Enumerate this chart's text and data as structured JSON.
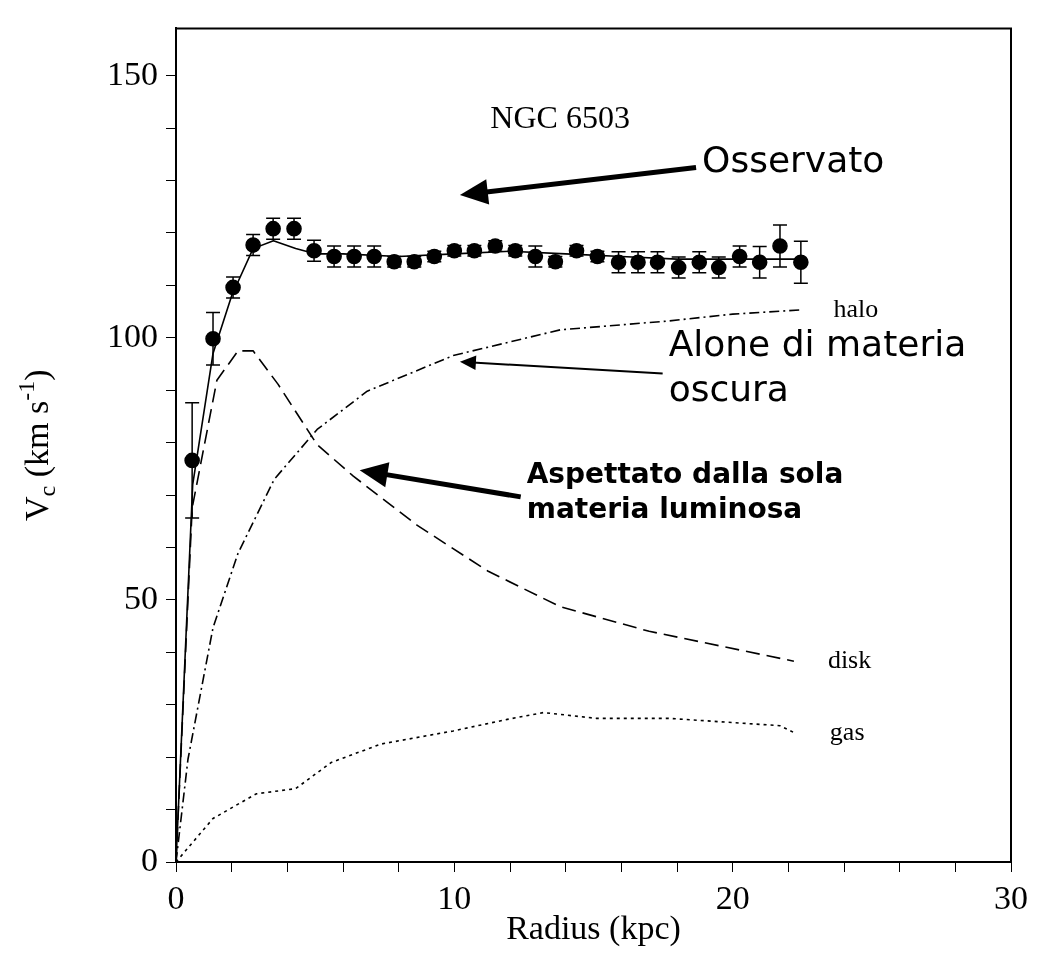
{
  "chart_data": {
    "type": "line",
    "xlabel": "Radius (kpc)",
    "ylabel": "V$_{c}$ (km s$^{-1}$)",
    "xlim": [
      0,
      30
    ],
    "xticks": [
      0,
      {
        "value": 2,
        "label": null
      },
      {
        "value": 4,
        "label": null
      },
      {
        "value": 6,
        "label": null
      },
      {
        "value": 8,
        "label": null
      },
      10,
      {
        "value": 12,
        "label": null
      },
      {
        "value": 14,
        "label": null
      },
      {
        "value": 16,
        "label": null
      },
      {
        "value": 18,
        "label": null
      },
      20,
      {
        "value": 22,
        "label": null
      },
      {
        "value": 24,
        "label": null
      },
      {
        "value": 26,
        "label": null
      },
      {
        "value": 28,
        "label": null
      },
      30
    ],
    "ylim": [
      0,
      159
    ],
    "yticks": [
      0,
      {
        "value": 10,
        "label": null
      },
      {
        "value": 20,
        "label": null
      },
      {
        "value": 30,
        "label": null
      },
      {
        "value": 40,
        "label": null
      },
      50,
      {
        "value": 60,
        "label": null
      },
      {
        "value": 70,
        "label": null
      },
      {
        "value": 80,
        "label": null
      },
      {
        "value": 90,
        "label": null
      },
      100,
      {
        "value": 110,
        "label": null
      },
      {
        "value": 120,
        "label": null
      },
      {
        "value": 130,
        "label": null
      },
      {
        "value": 140,
        "label": null
      },
      150
    ],
    "grid": false,
    "legend": false,
    "series": [
      {
        "type": "scatter",
        "color": "#000000",
        "marker": "circle",
        "x": [
          0.58,
          1.33,
          2.05,
          2.77,
          3.49,
          4.24,
          4.96,
          5.68,
          6.4,
          7.12,
          7.84,
          8.56,
          9.28,
          10.0,
          10.72,
          11.47,
          12.19,
          12.91,
          13.63,
          14.39,
          15.14,
          15.9,
          16.6,
          17.3,
          18.06,
          18.8,
          19.5,
          20.25,
          20.97,
          21.7,
          22.45
        ],
        "values": [
          76.6,
          99.8,
          109.6,
          117.7,
          120.8,
          120.8,
          116.6,
          115.5,
          115.5,
          115.5,
          114.5,
          114.5,
          115.5,
          116.6,
          116.6,
          117.5,
          116.6,
          115.5,
          114.5,
          116.6,
          115.5,
          114.4,
          114.4,
          114.4,
          113.4,
          114.4,
          113.4,
          115.5,
          114.4,
          117.5,
          114.4
        ],
        "errors": [
          11,
          5,
          2,
          2,
          2,
          2,
          2,
          2,
          2,
          2,
          1,
          1,
          1,
          1,
          1,
          1,
          1,
          2,
          1,
          1,
          1,
          2,
          2,
          2,
          2,
          2,
          2,
          2,
          3,
          4,
          4
        ]
      },
      {
        "color": "#000000",
        "marker": "none",
        "line_style": "solid",
        "x": [
          0,
          0.6,
          1.33,
          2.0,
          2.77,
          3.5,
          4.3,
          5.0,
          6.0,
          8.0,
          10.0,
          12.0,
          14.0,
          16.0,
          18.0,
          20.0,
          22.4
        ],
        "values": [
          0,
          72,
          97,
          108,
          117,
          118.5,
          117,
          116,
          116,
          115.5,
          116,
          116.5,
          116,
          115.5,
          115,
          115,
          115
        ]
      },
      {
        "name": "halo",
        "color": "#000000",
        "marker": "none",
        "line_style": "dashdot",
        "x": [
          0,
          0.43,
          1.33,
          2.23,
          3.53,
          5.07,
          6.87,
          9.96,
          13.8,
          17.7,
          20.0,
          22.4
        ],
        "values": [
          0,
          19.6,
          44.7,
          58.9,
          73,
          82.5,
          89.8,
          96.6,
          101.5,
          103.2,
          104.5,
          105.3
        ]
      },
      {
        "name": "disk",
        "color": "#000000",
        "marker": "none",
        "line_style": "dashed",
        "x": [
          0,
          0.58,
          1.47,
          2.23,
          2.77,
          3.67,
          5.07,
          6.37,
          8.67,
          11.2,
          13.8,
          17.0,
          22.2
        ],
        "values": [
          0,
          67.5,
          91.9,
          97.5,
          97.5,
          91.1,
          79.6,
          73.6,
          64.2,
          55.5,
          48.7,
          44,
          38.3
        ]
      },
      {
        "name": "gas",
        "color": "#000000",
        "marker": "none",
        "line_style": "dotted",
        "x": [
          0,
          1.33,
          2.88,
          4.3,
          5.58,
          7.37,
          9.96,
          11.9,
          13.2,
          15.1,
          17.7,
          21.7,
          22.27
        ],
        "values": [
          0,
          8.3,
          13,
          14,
          19,
          22.5,
          25,
          27.2,
          28.5,
          27.4,
          27.4,
          26,
          24.5
        ]
      }
    ],
    "annotations": [
      "NGC 6503",
      "Osservato",
      "Alone di materia oscura",
      "Aspettato dalla sola materia luminosa"
    ]
  }
}
